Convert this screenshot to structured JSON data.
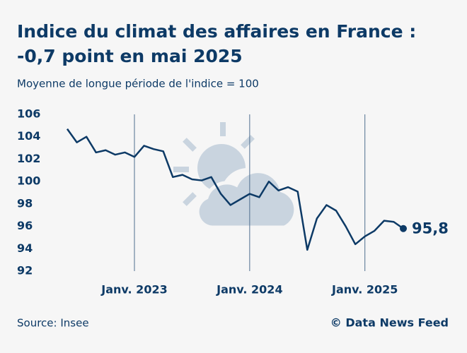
{
  "chart_data": {
    "type": "line",
    "title": [
      "Indice du climat des affaires en France :",
      "-0,7 point en mai 2025"
    ],
    "subtitle": "Moyenne de longue période de l'indice = 100",
    "source": "Source: Insee",
    "credit": "© Data News Feed",
    "categories": [
      null,
      null,
      null,
      null,
      null,
      null,
      null,
      "Janv. 2023",
      null,
      null,
      null,
      null,
      null,
      null,
      null,
      null,
      null,
      null,
      null,
      "Janv. 2024",
      null,
      null,
      null,
      null,
      null,
      null,
      null,
      null,
      null,
      null,
      null,
      "Janv. 2025",
      null,
      null,
      null,
      null
    ],
    "series": [
      {
        "name": "Indice du climat des affaires",
        "color": "#0d3a66",
        "values": [
          104.7,
          103.5,
          104.0,
          102.6,
          102.8,
          102.4,
          102.6,
          102.2,
          103.2,
          102.9,
          102.7,
          100.4,
          100.6,
          100.2,
          100.1,
          100.4,
          98.9,
          97.9,
          98.4,
          98.9,
          98.6,
          100.0,
          99.2,
          99.5,
          99.1,
          93.9,
          96.7,
          97.9,
          97.4,
          96.0,
          94.4,
          95.1,
          95.6,
          96.5,
          96.4,
          95.8
        ],
        "value_labels": [
          null,
          null,
          null,
          null,
          null,
          null,
          null,
          null,
          null,
          null,
          null,
          null,
          null,
          null,
          null,
          null,
          null,
          null,
          null,
          null,
          null,
          null,
          null,
          null,
          null,
          null,
          null,
          null,
          null,
          null,
          null,
          null,
          null,
          null,
          null,
          "95,8"
        ]
      }
    ],
    "ylim": [
      92,
      106
    ],
    "yticks": [
      92,
      94,
      96,
      98,
      100,
      102,
      104,
      106
    ],
    "grid": false
  }
}
